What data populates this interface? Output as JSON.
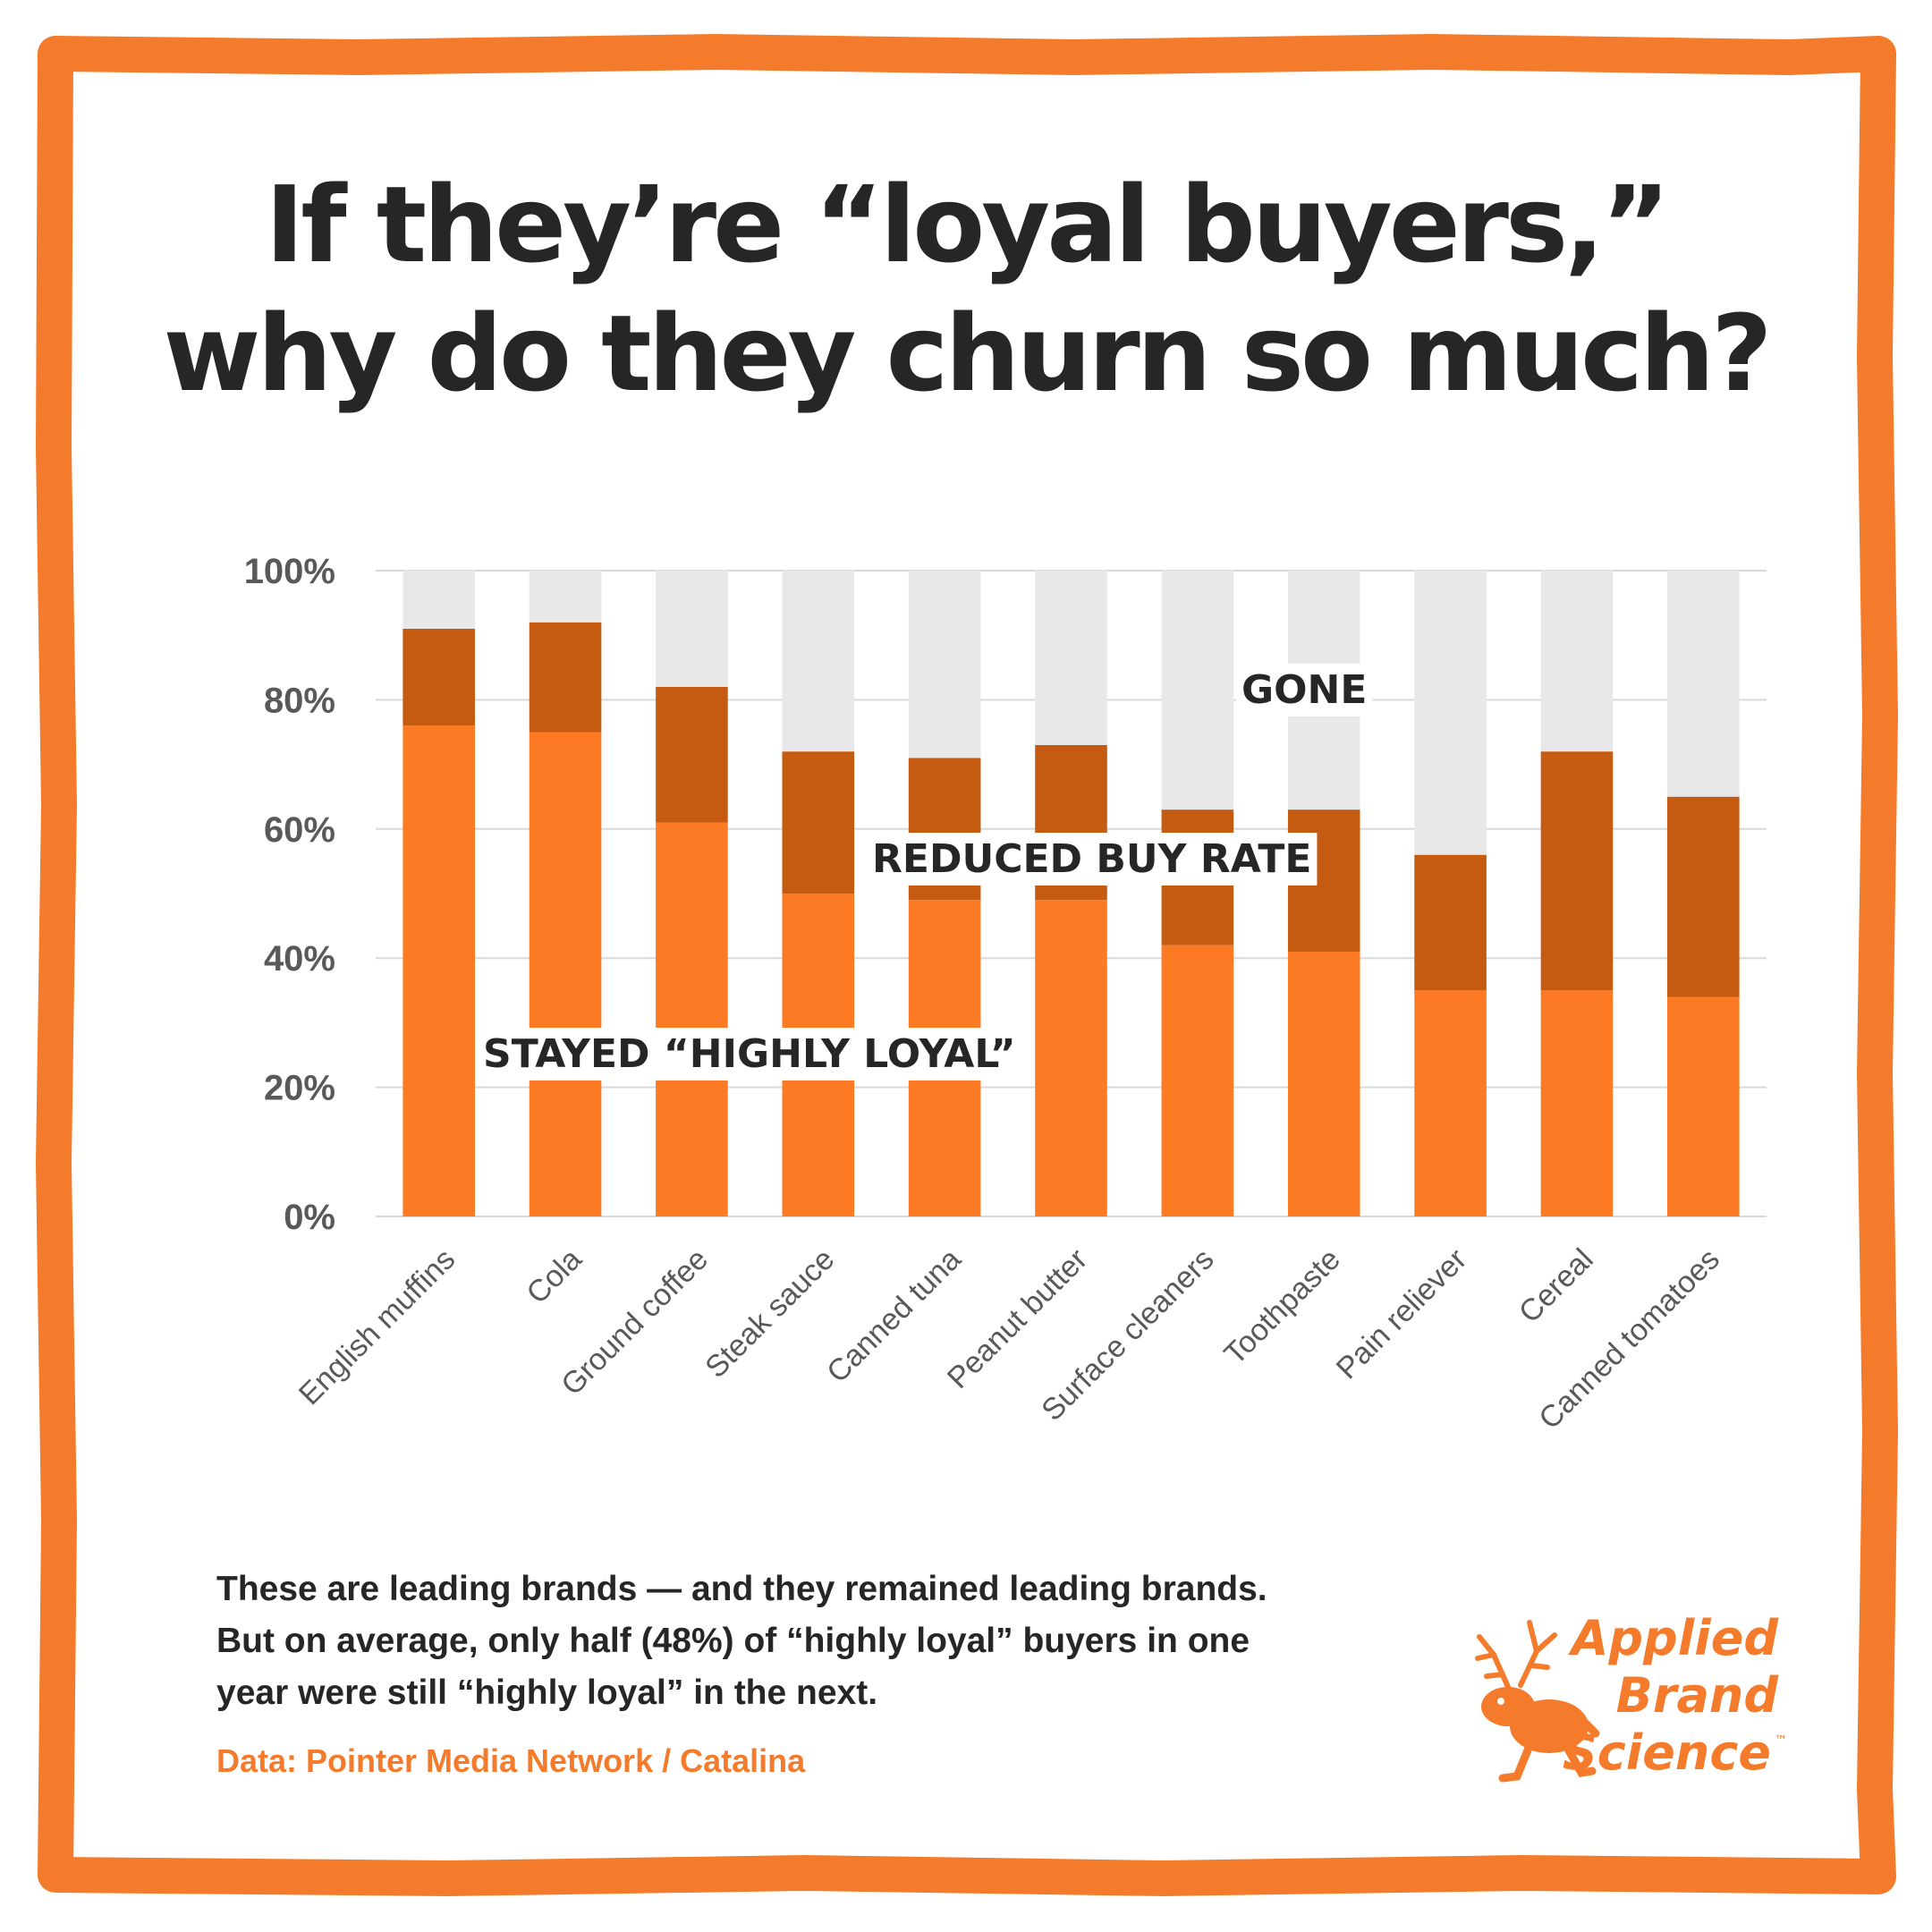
{
  "title": {
    "line1": "If they’re “loyal buyers,”",
    "line2": "why do they churn so much?"
  },
  "chart_data": {
    "type": "bar",
    "stacked": true,
    "categories": [
      "English muffins",
      "Cola",
      "Ground coffee",
      "Steak sauce",
      "Canned tuna",
      "Peanut butter",
      "Surface cleaners",
      "Toothpaste",
      "Pain reliever",
      "Cereal",
      "Canned tomatoes"
    ],
    "series": [
      {
        "name": "STAYED “HIGHLY LOYAL”",
        "values": [
          76,
          75,
          61,
          50,
          49,
          49,
          42,
          41,
          35,
          35,
          34
        ]
      },
      {
        "name": "REDUCED BUY RATE",
        "values": [
          15,
          17,
          21,
          22,
          22,
          24,
          21,
          22,
          21,
          37,
          31
        ]
      },
      {
        "name": "GONE",
        "values": [
          9,
          8,
          18,
          28,
          29,
          27,
          37,
          37,
          44,
          28,
          35
        ]
      }
    ],
    "ylim": [
      0,
      100
    ],
    "yticks": [
      "0%",
      "20%",
      "40%",
      "60%",
      "80%",
      "100%"
    ],
    "ytick_values": [
      0,
      20,
      40,
      60,
      80,
      100
    ],
    "grid": true,
    "legend": "inline labels on bars",
    "colors": {
      "loyal": "#FC7A23",
      "reduced": "#C55A11",
      "gone": "#E8E8E8",
      "grid": "#D9D9D9",
      "axis_text": "#595959"
    }
  },
  "caption": {
    "text": "These are leading brands — and they remained leading brands. But on average, only half (48%) of “highly loyal” buyers in one year were still “highly loyal” in the next.",
    "source": "Data: Pointer Media Network / Catalina"
  },
  "logo": {
    "line1": "Applied",
    "line2": "Brand",
    "line3": "Science",
    "tm": "™",
    "icon": "jackalope-icon"
  },
  "colors": {
    "border": "#F47B2B",
    "title": "#262626",
    "accent": "#F47B2B"
  }
}
